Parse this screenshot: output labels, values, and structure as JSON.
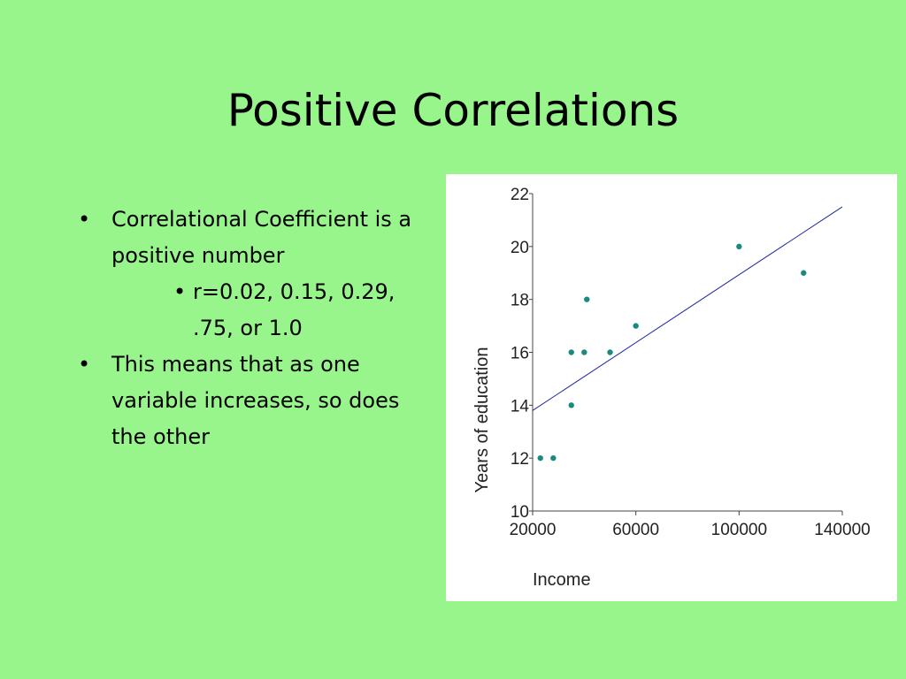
{
  "slide": {
    "title": "Positive Correlations",
    "bullets": [
      {
        "text": "Correlational Coefficient is a positive number",
        "marker": "•"
      },
      {
        "text": "r=0.02, 0.15, 0.29, .75, or 1.0",
        "marker": "•",
        "level": 2
      },
      {
        "text": "This means that as one variable increases, so does the other",
        "marker": "•"
      }
    ],
    "colors": {
      "background": "#98f58c",
      "point": "#1a8a80",
      "line": "#1f2a9e"
    }
  },
  "chart_data": {
    "type": "scatter",
    "xlabel": "Income",
    "ylabel": "Years of education",
    "xlim": [
      20000,
      140000
    ],
    "ylim": [
      10,
      22
    ],
    "xticks": [
      20000,
      60000,
      100000,
      140000
    ],
    "yticks": [
      10,
      12,
      14,
      16,
      18,
      20,
      22
    ],
    "points": [
      {
        "x": 23000,
        "y": 12
      },
      {
        "x": 28000,
        "y": 12
      },
      {
        "x": 35000,
        "y": 16
      },
      {
        "x": 35000,
        "y": 14
      },
      {
        "x": 40000,
        "y": 16
      },
      {
        "x": 41000,
        "y": 18
      },
      {
        "x": 50000,
        "y": 16
      },
      {
        "x": 60000,
        "y": 17
      },
      {
        "x": 100000,
        "y": 20
      },
      {
        "x": 125000,
        "y": 19
      }
    ],
    "trendline": {
      "x": [
        20000,
        140000
      ],
      "y": [
        13.8,
        21.5
      ]
    },
    "grid": false,
    "legend": "none"
  }
}
